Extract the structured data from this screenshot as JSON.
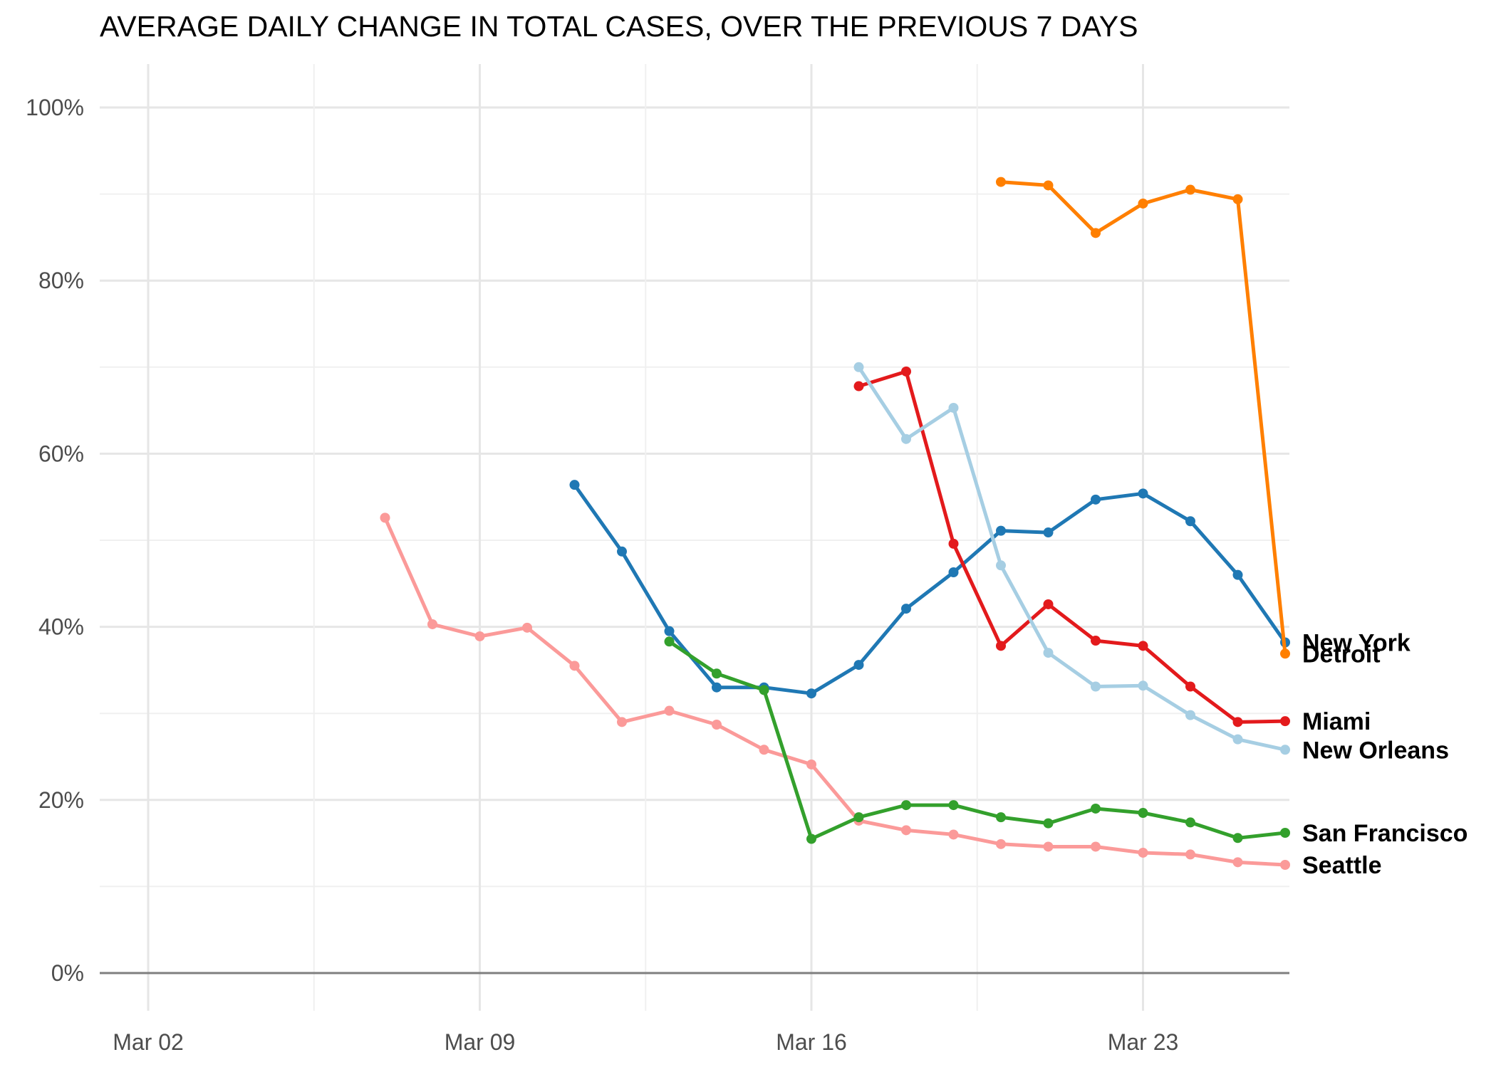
{
  "chart_data": {
    "type": "line",
    "title": "AVERAGE DAILY CHANGE IN TOTAL CASES, OVER THE PREVIOUS 7 DAYS",
    "xlabel": "",
    "ylabel": "",
    "x_ticks": [
      "Mar 02",
      "Mar 09",
      "Mar 16",
      "Mar 23"
    ],
    "y_ticks": [
      "0%",
      "20%",
      "40%",
      "60%",
      "80%",
      "100%"
    ],
    "xlim": [
      "2020-03-01",
      "2020-03-27"
    ],
    "ylim": [
      0,
      100
    ],
    "y_unit": "%",
    "grid": true,
    "legend": "direct-labels-right",
    "series": [
      {
        "name": "Seattle",
        "color": "#FB9A99",
        "x": [
          "2020-03-07",
          "2020-03-08",
          "2020-03-09",
          "2020-03-10",
          "2020-03-11",
          "2020-03-12",
          "2020-03-13",
          "2020-03-14",
          "2020-03-15",
          "2020-03-16",
          "2020-03-17",
          "2020-03-18",
          "2020-03-19",
          "2020-03-20",
          "2020-03-21",
          "2020-03-22",
          "2020-03-23",
          "2020-03-24",
          "2020-03-25",
          "2020-03-26"
        ],
        "y": [
          52.6,
          40.3,
          38.9,
          39.9,
          35.5,
          29.0,
          30.3,
          28.7,
          25.8,
          24.1,
          17.6,
          16.5,
          16.0,
          14.9,
          14.6,
          14.6,
          13.9,
          13.7,
          12.8,
          12.5
        ]
      },
      {
        "name": "New York",
        "color": "#1F78B4",
        "x": [
          "2020-03-11",
          "2020-03-12",
          "2020-03-13",
          "2020-03-14",
          "2020-03-15",
          "2020-03-16",
          "2020-03-17",
          "2020-03-18",
          "2020-03-19",
          "2020-03-20",
          "2020-03-21",
          "2020-03-22",
          "2020-03-23",
          "2020-03-24",
          "2020-03-25",
          "2020-03-26"
        ],
        "y": [
          56.4,
          48.7,
          39.5,
          33.0,
          33.0,
          32.3,
          35.6,
          42.1,
          46.3,
          51.1,
          50.9,
          54.7,
          55.4,
          52.2,
          46.0,
          38.2
        ]
      },
      {
        "name": "San Francisco",
        "color": "#33A02C",
        "x": [
          "2020-03-13",
          "2020-03-14",
          "2020-03-15",
          "2020-03-16",
          "2020-03-17",
          "2020-03-18",
          "2020-03-19",
          "2020-03-20",
          "2020-03-21",
          "2020-03-22",
          "2020-03-23",
          "2020-03-24",
          "2020-03-25",
          "2020-03-26"
        ],
        "y": [
          38.3,
          34.6,
          32.7,
          15.5,
          18.0,
          19.4,
          19.4,
          18.0,
          17.3,
          19.0,
          18.5,
          17.4,
          15.6,
          16.2
        ]
      },
      {
        "name": "Miami",
        "color": "#E31A1C",
        "x": [
          "2020-03-17",
          "2020-03-18",
          "2020-03-19",
          "2020-03-20",
          "2020-03-21",
          "2020-03-22",
          "2020-03-23",
          "2020-03-24",
          "2020-03-25",
          "2020-03-26"
        ],
        "y": [
          67.8,
          69.5,
          49.6,
          37.8,
          42.6,
          38.4,
          37.8,
          33.1,
          29.0,
          29.1
        ]
      },
      {
        "name": "New Orleans",
        "color": "#A6CEE3",
        "x": [
          "2020-03-17",
          "2020-03-18",
          "2020-03-19",
          "2020-03-20",
          "2020-03-21",
          "2020-03-22",
          "2020-03-23",
          "2020-03-24",
          "2020-03-25",
          "2020-03-26"
        ],
        "y": [
          70.0,
          61.7,
          65.3,
          47.1,
          37.0,
          33.1,
          33.2,
          29.8,
          27.0,
          25.8
        ]
      },
      {
        "name": "Detroit",
        "color": "#FF7F00",
        "x": [
          "2020-03-20",
          "2020-03-21",
          "2020-03-22",
          "2020-03-23",
          "2020-03-24",
          "2020-03-25",
          "2020-03-26"
        ],
        "y": [
          91.4,
          91.0,
          85.5,
          88.9,
          90.5,
          89.4,
          36.9
        ]
      }
    ]
  }
}
